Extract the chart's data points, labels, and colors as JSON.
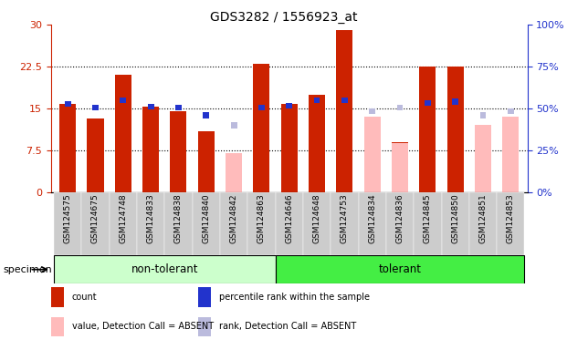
{
  "title": "GDS3282 / 1556923_at",
  "samples": [
    "GSM124575",
    "GSM124675",
    "GSM124748",
    "GSM124833",
    "GSM124838",
    "GSM124840",
    "GSM124842",
    "GSM124863",
    "GSM124646",
    "GSM124648",
    "GSM124753",
    "GSM124834",
    "GSM124836",
    "GSM124845",
    "GSM124850",
    "GSM124851",
    "GSM124853"
  ],
  "groups": [
    "non-tolerant",
    "non-tolerant",
    "non-tolerant",
    "non-tolerant",
    "non-tolerant",
    "non-tolerant",
    "non-tolerant",
    "non-tolerant",
    "tolerant",
    "tolerant",
    "tolerant",
    "tolerant",
    "tolerant",
    "tolerant",
    "tolerant",
    "tolerant",
    "tolerant"
  ],
  "count": [
    15.8,
    13.2,
    21.0,
    15.3,
    14.5,
    11.0,
    null,
    23.0,
    15.8,
    17.5,
    29.0,
    null,
    9.0,
    22.5,
    22.5,
    null,
    null
  ],
  "rank": [
    15.8,
    15.2,
    16.5,
    15.3,
    15.2,
    13.8,
    null,
    15.2,
    15.5,
    16.5,
    16.5,
    null,
    15.2,
    16.0,
    16.2,
    null,
    null
  ],
  "absent_value": [
    null,
    null,
    null,
    null,
    null,
    null,
    7.0,
    null,
    null,
    null,
    null,
    13.5,
    8.8,
    null,
    null,
    12.0,
    13.5
  ],
  "absent_rank": [
    null,
    null,
    null,
    null,
    null,
    null,
    12.0,
    null,
    null,
    null,
    null,
    14.5,
    15.2,
    null,
    null,
    13.8,
    14.5
  ],
  "ylim_left": [
    0,
    30
  ],
  "ylim_right": [
    0,
    100
  ],
  "yticks_left": [
    0,
    7.5,
    15,
    22.5,
    30
  ],
  "yticks_right": [
    0,
    25,
    50,
    75,
    100
  ],
  "ytick_labels_left": [
    "0",
    "7.5",
    "15",
    "22.5",
    "30"
  ],
  "ytick_labels_right": [
    "0%",
    "25%",
    "50%",
    "75%",
    "100%"
  ],
  "non_tolerant_label": "non-tolerant",
  "tolerant_label": "tolerant",
  "specimen_label": "specimen",
  "legend_items": [
    "count",
    "percentile rank within the sample",
    "value, Detection Call = ABSENT",
    "rank, Detection Call = ABSENT"
  ],
  "colors": {
    "count_bar": "#cc2200",
    "rank_square": "#2233cc",
    "absent_value_bar": "#ffbbbb",
    "absent_rank_square": "#bbbbdd",
    "non_tolerant_bg": "#ccffcc",
    "tolerant_bg": "#44ee44",
    "left_tick_color": "#cc2200",
    "right_tick_color": "#2233cc",
    "specimen_bg": "#cccccc"
  },
  "bar_width": 0.6
}
